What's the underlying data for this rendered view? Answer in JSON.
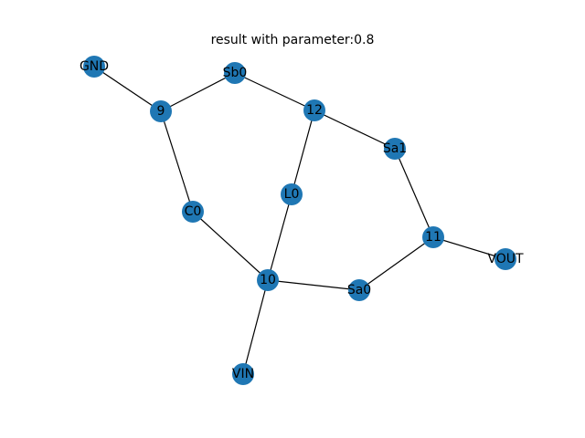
{
  "figure": {
    "title": "result with parameter:0.8"
  },
  "colors": {
    "node_fill": "#1f77b4",
    "edge": "#000000",
    "label": "#000000",
    "background": "#ffffff"
  },
  "graph": {
    "nodes": [
      {
        "id": "GND",
        "label": "GND"
      },
      {
        "id": "9",
        "label": "9"
      },
      {
        "id": "Sb0",
        "label": "Sb0"
      },
      {
        "id": "12",
        "label": "12"
      },
      {
        "id": "Sa1",
        "label": "Sa1"
      },
      {
        "id": "C0",
        "label": "C0"
      },
      {
        "id": "L0",
        "label": "L0"
      },
      {
        "id": "11",
        "label": "11"
      },
      {
        "id": "VOUT",
        "label": "VOUT"
      },
      {
        "id": "10",
        "label": "10"
      },
      {
        "id": "Sa0",
        "label": "Sa0"
      },
      {
        "id": "VIN",
        "label": "VIN"
      }
    ],
    "edges": [
      [
        "GND",
        "9"
      ],
      [
        "9",
        "Sb0"
      ],
      [
        "9",
        "C0"
      ],
      [
        "Sb0",
        "12"
      ],
      [
        "12",
        "Sa1"
      ],
      [
        "12",
        "L0"
      ],
      [
        "Sa1",
        "11"
      ],
      [
        "11",
        "VOUT"
      ],
      [
        "11",
        "Sa0"
      ],
      [
        "Sa0",
        "10"
      ],
      [
        "10",
        "C0"
      ],
      [
        "10",
        "L0"
      ],
      [
        "10",
        "VIN"
      ]
    ]
  }
}
